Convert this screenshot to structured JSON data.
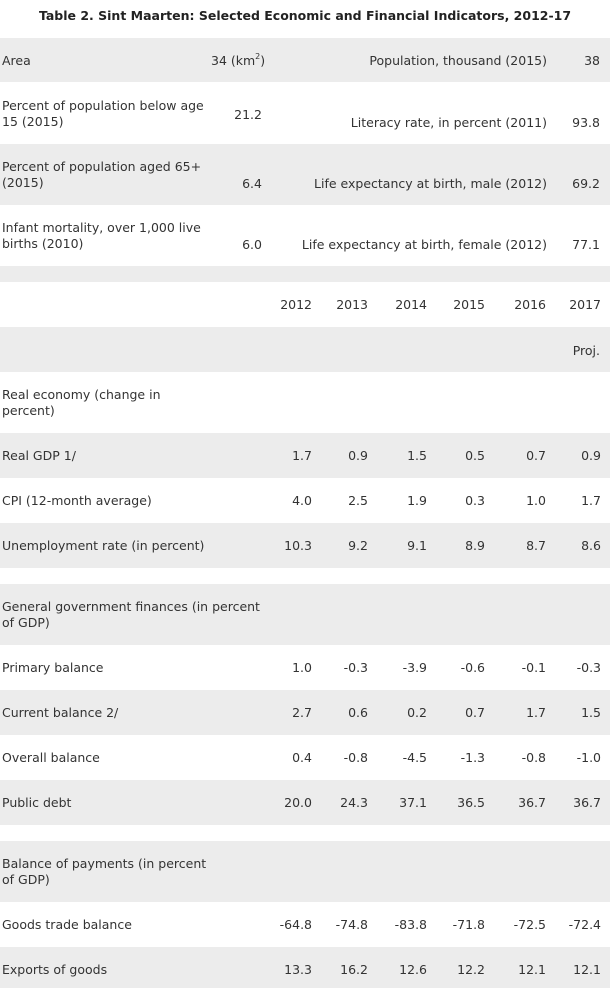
{
  "title": "Table 2. Sint Maarten: Selected Economic and Financial Indicators, 2012-17",
  "info_rows": [
    {
      "left_label": "Area",
      "left_value": "34 (km",
      "left_value_sup": "2",
      "left_value_tail": ")",
      "right_label": "Population, thousand (2015)",
      "right_value": "38"
    },
    {
      "left_label": "Percent of population below age 15 (2015)",
      "left_value": "21.2",
      "right_label": "Literacy rate, in percent (2011)",
      "right_value": "93.8"
    },
    {
      "left_label": "Percent of population aged 65+ (2015)",
      "left_value": "6.4",
      "right_label": "Life expectancy at birth, male (2012)",
      "right_value": "69.2"
    },
    {
      "left_label": "Infant mortality, over 1,000 live births (2010)",
      "left_value": "6.0",
      "right_label": "Life expectancy at birth, female (2012)",
      "right_value": "77.1"
    }
  ],
  "years": [
    "2012",
    "2013",
    "2014",
    "2015",
    "2016",
    "2017"
  ],
  "proj_label": "Proj.",
  "sections": [
    {
      "title": "Real economy (change in percent)",
      "rows": [
        {
          "label": "Real GDP 1/",
          "values": [
            "1.7",
            "0.9",
            "1.5",
            "0.5",
            "0.7",
            "0.9"
          ]
        },
        {
          "label": "CPI (12-month average)",
          "values": [
            "4.0",
            "2.5",
            "1.9",
            "0.3",
            "1.0",
            "1.7"
          ]
        },
        {
          "label": "Unemployment rate (in percent)",
          "values": [
            "10.3",
            "9.2",
            "9.1",
            "8.9",
            "8.7",
            "8.6"
          ]
        }
      ]
    },
    {
      "title": "General government finances (in percent of GDP)",
      "rows": [
        {
          "label": "Primary balance",
          "values": [
            "1.0",
            "-0.3",
            "-3.9",
            "-0.6",
            "-0.1",
            "-0.3"
          ]
        },
        {
          "label": "Current balance 2/",
          "values": [
            "2.7",
            "0.6",
            "0.2",
            "0.7",
            "1.7",
            "1.5"
          ]
        },
        {
          "label": "Overall balance",
          "values": [
            "0.4",
            "-0.8",
            "-4.5",
            "-1.3",
            "-0.8",
            "-1.0"
          ]
        },
        {
          "label": "Public debt",
          "values": [
            "20.0",
            "24.3",
            "37.1",
            "36.5",
            "36.7",
            "36.7"
          ]
        }
      ]
    },
    {
      "title": "Balance of payments (in percent of GDP)",
      "rows": [
        {
          "label": "Goods trade balance",
          "values": [
            "-64.8",
            "-74.8",
            "-83.8",
            "-71.8",
            "-72.5",
            "-72.4"
          ]
        },
        {
          "label": "Exports of goods",
          "values": [
            "13.3",
            "16.2",
            "12.6",
            "12.2",
            "12.1",
            "12.1"
          ]
        }
      ]
    }
  ]
}
